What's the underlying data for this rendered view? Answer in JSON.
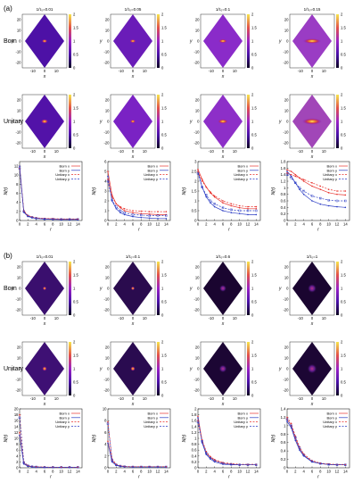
{
  "figure": {
    "panels": [
      {
        "label": "(a)",
        "rows": [
          "Born",
          "Unitary"
        ],
        "titles": [
          "1/τ₀=0.01",
          "1/τ₀=0.05",
          "1/τ₀=0.1",
          "1/τ₀=0.15"
        ]
      },
      {
        "label": "(b)",
        "rows": [
          "Born",
          "Unitary"
        ],
        "titles": [
          "1/τ₀=0.01",
          "1/τ₀=0.1",
          "1/τ₀=0.6",
          "1/τ₀=1"
        ]
      }
    ],
    "xticks": [
      "-10",
      "0",
      "10"
    ],
    "yticks": [
      "-20",
      "-10",
      "0",
      "10",
      "20"
    ],
    "cbticks": [
      "0",
      "0.5",
      "1",
      "1.5",
      "2"
    ],
    "xlabel": "x",
    "ylabel": "y"
  },
  "colors": {
    "low": "#1a0530",
    "mid": "#7b22c8",
    "high": "#f2e24a",
    "born_x": "#e8332e",
    "born_y": "#2b3cc4"
  },
  "chart_data": [
    {
      "type": "line",
      "panel": "a",
      "index": 0,
      "xlabel": "r",
      "ylabel": "N(r)",
      "xlim": [
        0,
        15
      ],
      "ylim": [
        0,
        13
      ],
      "xticks": [
        0,
        2,
        4,
        6,
        8,
        10,
        12,
        14
      ],
      "yticks": [
        0,
        2,
        4,
        6,
        8,
        10,
        12
      ],
      "series": [
        {
          "name": "Born x",
          "x": [
            0,
            1,
            2,
            3,
            4,
            6,
            8,
            10,
            12,
            14
          ],
          "y": [
            12,
            2.0,
            1.0,
            0.7,
            0.5,
            0.4,
            0.35,
            0.3,
            0.3,
            0.3
          ]
        },
        {
          "name": "Born y",
          "x": [
            0,
            1,
            2,
            3,
            4,
            6,
            8,
            10,
            12,
            14
          ],
          "y": [
            12,
            1.8,
            0.9,
            0.6,
            0.45,
            0.3,
            0.25,
            0.2,
            0.2,
            0.2
          ]
        },
        {
          "name": "Unitary x",
          "x": [
            0,
            1,
            2,
            3,
            4,
            6,
            8,
            10,
            12,
            14
          ],
          "y": [
            11.5,
            2.2,
            1.1,
            0.8,
            0.6,
            0.45,
            0.4,
            0.35,
            0.35,
            0.35
          ]
        },
        {
          "name": "Unitary y",
          "x": [
            0,
            1,
            2,
            3,
            4,
            6,
            8,
            10,
            12,
            14
          ],
          "y": [
            11.5,
            2.0,
            1.0,
            0.7,
            0.5,
            0.35,
            0.3,
            0.25,
            0.25,
            0.25
          ]
        }
      ]
    },
    {
      "type": "line",
      "panel": "a",
      "index": 1,
      "xlabel": "r",
      "ylabel": "N(r)",
      "xlim": [
        0,
        15
      ],
      "ylim": [
        0,
        6
      ],
      "xticks": [
        0,
        2,
        4,
        6,
        8,
        10,
        12,
        14
      ],
      "yticks": [
        0,
        1,
        2,
        3,
        4,
        5,
        6
      ],
      "series": [
        {
          "name": "Born x",
          "x": [
            0,
            1,
            2,
            3,
            4,
            6,
            8,
            10,
            12,
            14
          ],
          "y": [
            5,
            2.6,
            1.7,
            1.3,
            1.0,
            0.8,
            0.7,
            0.65,
            0.6,
            0.6
          ]
        },
        {
          "name": "Born y",
          "x": [
            0,
            1,
            2,
            3,
            4,
            6,
            8,
            10,
            12,
            14
          ],
          "y": [
            4.5,
            2.0,
            1.2,
            0.8,
            0.6,
            0.4,
            0.3,
            0.25,
            0.2,
            0.2
          ]
        },
        {
          "name": "Unitary x",
          "x": [
            0,
            1,
            2,
            3,
            4,
            6,
            8,
            10,
            12,
            14
          ],
          "y": [
            4.2,
            2.4,
            1.7,
            1.4,
            1.2,
            1.0,
            0.95,
            0.9,
            0.9,
            0.9
          ]
        },
        {
          "name": "Unitary y",
          "x": [
            0,
            1,
            2,
            3,
            4,
            6,
            8,
            10,
            12,
            14
          ],
          "y": [
            4.0,
            2.1,
            1.4,
            1.0,
            0.8,
            0.6,
            0.55,
            0.5,
            0.5,
            0.5
          ]
        }
      ]
    },
    {
      "type": "line",
      "panel": "a",
      "index": 2,
      "xlabel": "r",
      "ylabel": "N(r)",
      "xlim": [
        0,
        15
      ],
      "ylim": [
        0,
        3
      ],
      "xticks": [
        0,
        2,
        4,
        6,
        8,
        10,
        12,
        14
      ],
      "yticks": [
        0,
        0.5,
        1,
        1.5,
        2,
        2.5,
        3
      ],
      "series": [
        {
          "name": "Born x",
          "x": [
            0,
            1,
            2,
            3,
            4,
            6,
            8,
            10,
            12,
            14
          ],
          "y": [
            2.6,
            2.1,
            1.7,
            1.4,
            1.2,
            0.9,
            0.75,
            0.65,
            0.6,
            0.6
          ]
        },
        {
          "name": "Born y",
          "x": [
            0,
            1,
            2,
            3,
            4,
            6,
            8,
            10,
            12,
            14
          ],
          "y": [
            2.5,
            1.7,
            1.2,
            0.9,
            0.7,
            0.5,
            0.4,
            0.35,
            0.3,
            0.3
          ]
        },
        {
          "name": "Unitary x",
          "x": [
            0,
            1,
            2,
            3,
            4,
            6,
            8,
            10,
            12,
            14
          ],
          "y": [
            2.5,
            2.0,
            1.7,
            1.45,
            1.25,
            1.0,
            0.85,
            0.75,
            0.7,
            0.7
          ]
        },
        {
          "name": "Unitary y",
          "x": [
            0,
            1,
            2,
            3,
            4,
            6,
            8,
            10,
            12,
            14
          ],
          "y": [
            2.4,
            1.7,
            1.3,
            1.0,
            0.85,
            0.65,
            0.55,
            0.5,
            0.5,
            0.5
          ]
        }
      ]
    },
    {
      "type": "line",
      "panel": "a",
      "index": 3,
      "xlabel": "r",
      "ylabel": "N(r)",
      "xlim": [
        0,
        15
      ],
      "ylim": [
        0,
        1.8
      ],
      "xticks": [
        0,
        2,
        4,
        6,
        8,
        10,
        12,
        14
      ],
      "yticks": [
        0,
        0.2,
        0.4,
        0.6,
        0.8,
        1,
        1.2,
        1.4,
        1.6,
        1.8
      ],
      "series": [
        {
          "name": "Born x",
          "x": [
            0,
            1,
            2,
            3,
            4,
            6,
            8,
            10,
            12,
            14
          ],
          "y": [
            1.55,
            1.5,
            1.4,
            1.3,
            1.2,
            1.05,
            0.95,
            0.85,
            0.8,
            0.78
          ]
        },
        {
          "name": "Born y",
          "x": [
            0,
            1,
            2,
            3,
            4,
            6,
            8,
            10,
            12,
            14
          ],
          "y": [
            1.5,
            1.35,
            1.15,
            0.95,
            0.8,
            0.6,
            0.5,
            0.45,
            0.42,
            0.4
          ]
        },
        {
          "name": "Unitary x",
          "x": [
            0,
            1,
            2,
            3,
            4,
            6,
            8,
            10,
            12,
            14
          ],
          "y": [
            1.45,
            1.4,
            1.35,
            1.3,
            1.25,
            1.15,
            1.05,
            0.95,
            0.9,
            0.9
          ]
        },
        {
          "name": "Unitary y",
          "x": [
            0,
            1,
            2,
            3,
            4,
            6,
            8,
            10,
            12,
            14
          ],
          "y": [
            1.4,
            1.3,
            1.15,
            1.0,
            0.9,
            0.75,
            0.68,
            0.62,
            0.6,
            0.6
          ]
        }
      ]
    },
    {
      "type": "line",
      "panel": "b",
      "index": 0,
      "xlabel": "r",
      "ylabel": "N(r)",
      "xlim": [
        0,
        15
      ],
      "ylim": [
        0,
        20
      ],
      "xticks": [
        0,
        2,
        4,
        6,
        8,
        10,
        12,
        14
      ],
      "yticks": [
        0,
        2,
        4,
        6,
        8,
        10,
        12,
        14,
        16,
        18,
        20
      ],
      "series": [
        {
          "name": "Born x",
          "x": [
            0,
            1,
            2,
            3,
            4,
            6,
            8,
            10,
            12,
            14
          ],
          "y": [
            12,
            1.5,
            0.6,
            0.4,
            0.3,
            0.2,
            0.2,
            0.2,
            0.2,
            0.2
          ]
        },
        {
          "name": "Born y",
          "x": [
            0,
            1,
            2,
            3,
            4,
            6,
            8,
            10,
            12,
            14
          ],
          "y": [
            11,
            1.3,
            0.5,
            0.3,
            0.2,
            0.15,
            0.15,
            0.15,
            0.15,
            0.15
          ]
        },
        {
          "name": "Unitary x",
          "x": [
            0,
            1,
            2,
            3,
            4,
            6,
            8,
            10,
            12,
            14
          ],
          "y": [
            18,
            2,
            0.8,
            0.5,
            0.35,
            0.25,
            0.2,
            0.2,
            0.2,
            0.2
          ]
        },
        {
          "name": "Unitary y",
          "x": [
            0,
            1,
            2,
            3,
            4,
            6,
            8,
            10,
            12,
            14
          ],
          "y": [
            17,
            1.8,
            0.7,
            0.4,
            0.3,
            0.2,
            0.2,
            0.2,
            0.2,
            0.2
          ]
        }
      ]
    },
    {
      "type": "line",
      "panel": "b",
      "index": 1,
      "xlabel": "r",
      "ylabel": "N(r)",
      "xlim": [
        0,
        15
      ],
      "ylim": [
        0,
        10
      ],
      "xticks": [
        0,
        2,
        4,
        6,
        8,
        10,
        12,
        14
      ],
      "yticks": [
        0,
        2,
        4,
        6,
        8,
        10
      ],
      "series": [
        {
          "name": "Born x",
          "x": [
            0,
            1,
            2,
            3,
            4,
            6,
            8,
            10,
            12,
            14
          ],
          "y": [
            4.5,
            1.2,
            0.5,
            0.3,
            0.2,
            0.15,
            0.15,
            0.15,
            0.15,
            0.15
          ]
        },
        {
          "name": "Born y",
          "x": [
            0,
            1,
            2,
            3,
            4,
            6,
            8,
            10,
            12,
            14
          ],
          "y": [
            4.2,
            1.0,
            0.4,
            0.25,
            0.2,
            0.15,
            0.15,
            0.15,
            0.15,
            0.15
          ]
        },
        {
          "name": "Unitary x",
          "x": [
            0,
            1,
            2,
            3,
            4,
            6,
            8,
            10,
            12,
            14
          ],
          "y": [
            7.8,
            1.5,
            0.6,
            0.35,
            0.25,
            0.2,
            0.2,
            0.2,
            0.2,
            0.2
          ]
        },
        {
          "name": "Unitary y",
          "x": [
            0,
            1,
            2,
            3,
            4,
            6,
            8,
            10,
            12,
            14
          ],
          "y": [
            7.5,
            1.3,
            0.5,
            0.3,
            0.2,
            0.15,
            0.15,
            0.15,
            0.15,
            0.15
          ]
        }
      ]
    },
    {
      "type": "line",
      "panel": "b",
      "index": 2,
      "xlabel": "r",
      "ylabel": "N(r)",
      "xlim": [
        0,
        15
      ],
      "ylim": [
        0,
        2
      ],
      "xticks": [
        0,
        2,
        4,
        6,
        8,
        10,
        12,
        14
      ],
      "yticks": [
        0,
        0.2,
        0.4,
        0.6,
        0.8,
        1,
        1.2,
        1.4,
        1.6,
        1.8,
        2
      ],
      "series": [
        {
          "name": "Born x",
          "x": [
            0,
            1,
            2,
            3,
            4,
            6,
            8,
            10,
            12,
            14
          ],
          "y": [
            1.75,
            0.9,
            0.5,
            0.35,
            0.25,
            0.15,
            0.12,
            0.1,
            0.1,
            0.1
          ]
        },
        {
          "name": "Born y",
          "x": [
            0,
            1,
            2,
            3,
            4,
            6,
            8,
            10,
            12,
            14
          ],
          "y": [
            1.7,
            0.85,
            0.45,
            0.3,
            0.2,
            0.12,
            0.1,
            0.1,
            0.1,
            0.1
          ]
        },
        {
          "name": "Unitary x",
          "x": [
            0,
            1,
            2,
            3,
            4,
            6,
            8,
            10,
            12,
            14
          ],
          "y": [
            1.6,
            0.95,
            0.55,
            0.38,
            0.28,
            0.18,
            0.14,
            0.12,
            0.12,
            0.12
          ]
        },
        {
          "name": "Unitary y",
          "x": [
            0,
            1,
            2,
            3,
            4,
            6,
            8,
            10,
            12,
            14
          ],
          "y": [
            1.55,
            0.9,
            0.5,
            0.33,
            0.24,
            0.15,
            0.12,
            0.1,
            0.1,
            0.1
          ]
        }
      ]
    },
    {
      "type": "line",
      "panel": "b",
      "index": 3,
      "xlabel": "r",
      "ylabel": "N(r)",
      "xlim": [
        0,
        15
      ],
      "ylim": [
        0,
        1.4
      ],
      "xticks": [
        0,
        2,
        4,
        6,
        8,
        10,
        12,
        14
      ],
      "yticks": [
        0,
        0.2,
        0.4,
        0.6,
        0.8,
        1,
        1.2,
        1.4
      ],
      "series": [
        {
          "name": "Born x",
          "x": [
            0,
            1,
            2,
            3,
            4,
            6,
            8,
            10,
            12,
            14
          ],
          "y": [
            1.15,
            1.0,
            0.7,
            0.45,
            0.3,
            0.15,
            0.1,
            0.08,
            0.07,
            0.07
          ]
        },
        {
          "name": "Born y",
          "x": [
            0,
            1,
            2,
            3,
            4,
            6,
            8,
            10,
            12,
            14
          ],
          "y": [
            1.1,
            0.95,
            0.65,
            0.42,
            0.28,
            0.14,
            0.1,
            0.08,
            0.07,
            0.07
          ]
        },
        {
          "name": "Unitary x",
          "x": [
            0,
            1,
            2,
            3,
            4,
            6,
            8,
            10,
            12,
            14
          ],
          "y": [
            1.2,
            1.05,
            0.75,
            0.5,
            0.33,
            0.17,
            0.11,
            0.09,
            0.08,
            0.08
          ]
        },
        {
          "name": "Unitary y",
          "x": [
            0,
            1,
            2,
            3,
            4,
            6,
            8,
            10,
            12,
            14
          ],
          "y": [
            1.15,
            1.0,
            0.72,
            0.47,
            0.3,
            0.15,
            0.1,
            0.08,
            0.07,
            0.07
          ]
        }
      ]
    }
  ]
}
